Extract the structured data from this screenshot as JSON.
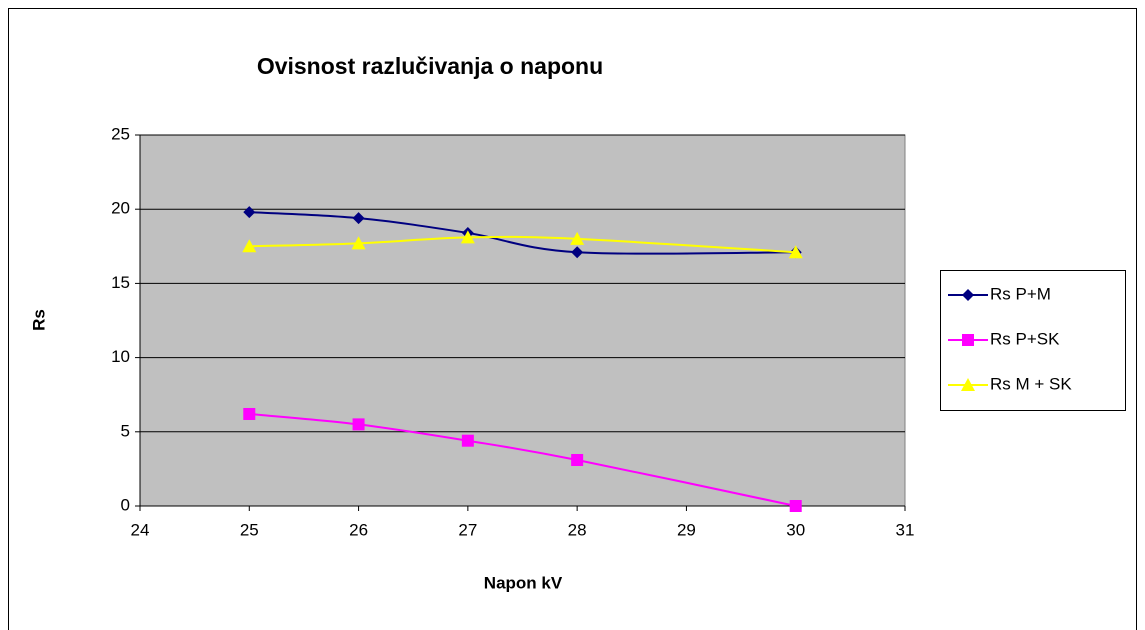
{
  "chart_data": {
    "type": "line",
    "title": "Ovisnost razlučivanja o naponu",
    "x_label": "Napon kV",
    "y_label": "Rs",
    "x": [
      25,
      26,
      27,
      28,
      30
    ],
    "series": [
      {
        "name": "Rs P+M",
        "color": "#000080",
        "marker": "diamond",
        "values": [
          19.8,
          19.4,
          18.4,
          17.1,
          17.1
        ]
      },
      {
        "name": "Rs P+SK",
        "color": "#ff00ff",
        "marker": "square",
        "values": [
          6.2,
          5.5,
          4.4,
          3.1,
          0
        ]
      },
      {
        "name": "Rs M + SK",
        "color": "#ffff00",
        "marker": "triangle",
        "values": [
          17.5,
          17.7,
          18.1,
          18.0,
          17.1
        ]
      }
    ],
    "xlim": [
      24,
      31
    ],
    "xticks": [
      24,
      25,
      26,
      27,
      28,
      29,
      30,
      31
    ],
    "ylim": [
      0,
      25
    ],
    "yticks": [
      0,
      5,
      10,
      15,
      20,
      25
    ],
    "grid": true,
    "smooth": true,
    "legend": "right"
  }
}
